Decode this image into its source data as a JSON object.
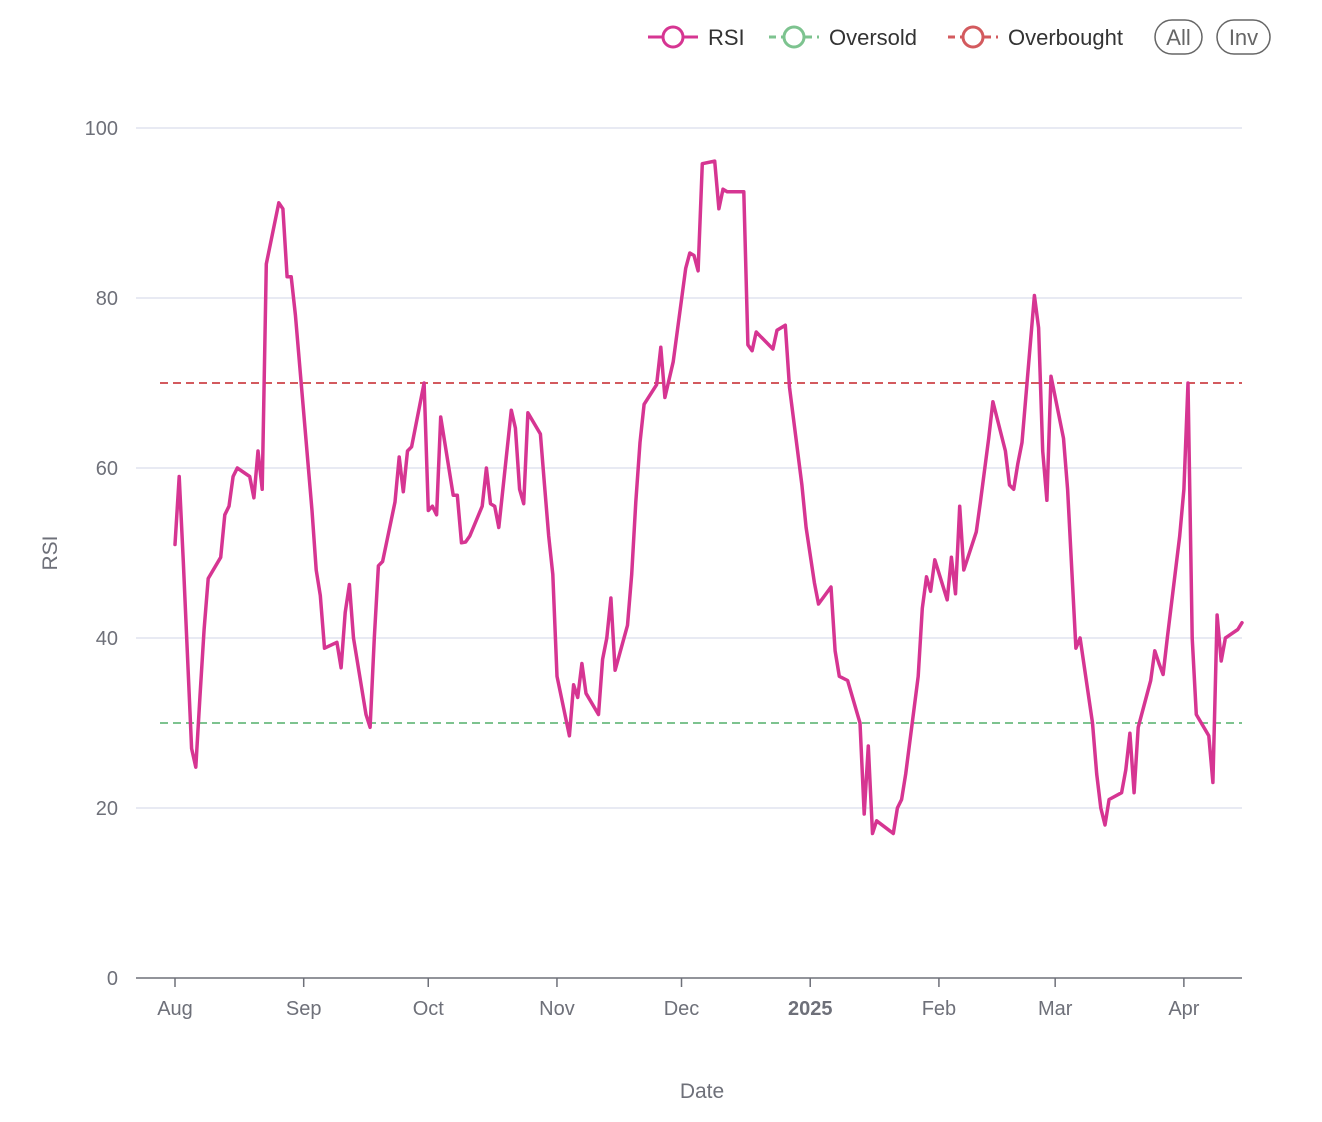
{
  "chart_data": {
    "type": "line",
    "xlabel": "Date",
    "ylabel": "RSI",
    "ylim": [
      0,
      100
    ],
    "y_ticks": [
      0,
      20,
      40,
      60,
      80,
      100
    ],
    "x_range": [
      "2024-08-01",
      "2025-04-15"
    ],
    "x_ticks": [
      {
        "date": "2024-08-01",
        "label": "Aug",
        "bold": false
      },
      {
        "date": "2024-09-01",
        "label": "Sep",
        "bold": false
      },
      {
        "date": "2024-10-01",
        "label": "Oct",
        "bold": false
      },
      {
        "date": "2024-11-01",
        "label": "Nov",
        "bold": false
      },
      {
        "date": "2024-12-01",
        "label": "Dec",
        "bold": false
      },
      {
        "date": "2025-01-01",
        "label": "2025",
        "bold": true
      },
      {
        "date": "2025-02-01",
        "label": "Feb",
        "bold": false
      },
      {
        "date": "2025-03-01",
        "label": "Mar",
        "bold": false
      },
      {
        "date": "2025-04-01",
        "label": "Apr",
        "bold": false
      }
    ],
    "grid": true,
    "legend_position": "top-right",
    "series": [
      {
        "name": "RSI",
        "color": "#d63592",
        "style": "solid",
        "points": [
          [
            "2024-08-01",
            51
          ],
          [
            "2024-08-02",
            59
          ],
          [
            "2024-08-03",
            49
          ],
          [
            "2024-08-05",
            27
          ],
          [
            "2024-08-06",
            24.8
          ],
          [
            "2024-08-07",
            33
          ],
          [
            "2024-08-08",
            41
          ],
          [
            "2024-08-09",
            47
          ],
          [
            "2024-08-12",
            49.5
          ],
          [
            "2024-08-13",
            54.5
          ],
          [
            "2024-08-14",
            55.5
          ],
          [
            "2024-08-15",
            59
          ],
          [
            "2024-08-16",
            60
          ],
          [
            "2024-08-19",
            59
          ],
          [
            "2024-08-20",
            56.5
          ],
          [
            "2024-08-21",
            62
          ],
          [
            "2024-08-22",
            57.5
          ],
          [
            "2024-08-23",
            84
          ],
          [
            "2024-08-26",
            91.2
          ],
          [
            "2024-08-27",
            90.5
          ],
          [
            "2024-08-28",
            82.5
          ],
          [
            "2024-08-29",
            82.5
          ],
          [
            "2024-08-30",
            78
          ],
          [
            "2024-09-03",
            55
          ],
          [
            "2024-09-04",
            48
          ],
          [
            "2024-09-05",
            45
          ],
          [
            "2024-09-06",
            38.8
          ],
          [
            "2024-09-09",
            39.5
          ],
          [
            "2024-09-10",
            36.5
          ],
          [
            "2024-09-11",
            43
          ],
          [
            "2024-09-12",
            46.3
          ],
          [
            "2024-09-13",
            40
          ],
          [
            "2024-09-16",
            31
          ],
          [
            "2024-09-17",
            29.5
          ],
          [
            "2024-09-18",
            40
          ],
          [
            "2024-09-19",
            48.5
          ],
          [
            "2024-09-20",
            49
          ],
          [
            "2024-09-23",
            56
          ],
          [
            "2024-09-24",
            61.3
          ],
          [
            "2024-09-25",
            57.2
          ],
          [
            "2024-09-26",
            62
          ],
          [
            "2024-09-27",
            62.5
          ],
          [
            "2024-09-30",
            70
          ],
          [
            "2024-10-01",
            55
          ],
          [
            "2024-10-02",
            55.5
          ],
          [
            "2024-10-03",
            54.5
          ],
          [
            "2024-10-04",
            66
          ],
          [
            "2024-10-07",
            56.8
          ],
          [
            "2024-10-08",
            56.8
          ],
          [
            "2024-10-09",
            51.2
          ],
          [
            "2024-10-10",
            51.3
          ],
          [
            "2024-10-11",
            52
          ],
          [
            "2024-10-14",
            55.5
          ],
          [
            "2024-10-15",
            60
          ],
          [
            "2024-10-16",
            55.8
          ],
          [
            "2024-10-17",
            55.5
          ],
          [
            "2024-10-18",
            53
          ],
          [
            "2024-10-21",
            66.8
          ],
          [
            "2024-10-22",
            64.7
          ],
          [
            "2024-10-23",
            57.5
          ],
          [
            "2024-10-24",
            55.8
          ],
          [
            "2024-10-25",
            66.5
          ],
          [
            "2024-10-28",
            64
          ],
          [
            "2024-10-29",
            58
          ],
          [
            "2024-10-30",
            52
          ],
          [
            "2024-10-31",
            47.5
          ],
          [
            "2024-11-01",
            35.5
          ],
          [
            "2024-11-04",
            28.5
          ],
          [
            "2024-11-05",
            34.5
          ],
          [
            "2024-11-06",
            33
          ],
          [
            "2024-11-07",
            37
          ],
          [
            "2024-11-08",
            33.5
          ],
          [
            "2024-11-11",
            31
          ],
          [
            "2024-11-12",
            37.5
          ],
          [
            "2024-11-13",
            40
          ],
          [
            "2024-11-14",
            44.7
          ],
          [
            "2024-11-15",
            36.2
          ],
          [
            "2024-11-18",
            41.5
          ],
          [
            "2024-11-19",
            47.5
          ],
          [
            "2024-11-20",
            56
          ],
          [
            "2024-11-21",
            63
          ],
          [
            "2024-11-22",
            67.5
          ],
          [
            "2024-11-25",
            69.8
          ],
          [
            "2024-11-26",
            74.2
          ],
          [
            "2024-11-27",
            68.3
          ],
          [
            "2024-11-29",
            72.5
          ],
          [
            "2024-12-02",
            83.5
          ],
          [
            "2024-12-03",
            85.3
          ],
          [
            "2024-12-04",
            85
          ],
          [
            "2024-12-05",
            83.2
          ],
          [
            "2024-12-06",
            95.8
          ],
          [
            "2024-12-09",
            96.1
          ],
          [
            "2024-12-10",
            90.5
          ],
          [
            "2024-12-11",
            92.8
          ],
          [
            "2024-12-12",
            92.5
          ],
          [
            "2024-12-13",
            92.5
          ],
          [
            "2024-12-16",
            92.5
          ],
          [
            "2024-12-17",
            74.5
          ],
          [
            "2024-12-18",
            73.8
          ],
          [
            "2024-12-19",
            76
          ],
          [
            "2024-12-20",
            75.5
          ],
          [
            "2024-12-23",
            74
          ],
          [
            "2024-12-24",
            76.2
          ],
          [
            "2024-12-26",
            76.8
          ],
          [
            "2024-12-27",
            69.5
          ],
          [
            "2024-12-30",
            58
          ],
          [
            "2024-12-31",
            53
          ],
          [
            "2025-01-02",
            46.5
          ],
          [
            "2025-01-03",
            44
          ],
          [
            "2025-01-06",
            46
          ],
          [
            "2025-01-07",
            38.5
          ],
          [
            "2025-01-08",
            35.5
          ],
          [
            "2025-01-10",
            35
          ],
          [
            "2025-01-13",
            30
          ],
          [
            "2025-01-14",
            19.3
          ],
          [
            "2025-01-15",
            27.3
          ],
          [
            "2025-01-16",
            17
          ],
          [
            "2025-01-17",
            18.5
          ],
          [
            "2025-01-21",
            17
          ],
          [
            "2025-01-22",
            20
          ],
          [
            "2025-01-23",
            21
          ],
          [
            "2025-01-24",
            24
          ],
          [
            "2025-01-27",
            35.5
          ],
          [
            "2025-01-28",
            43.5
          ],
          [
            "2025-01-29",
            47.2
          ],
          [
            "2025-01-30",
            45.5
          ],
          [
            "2025-01-31",
            49.2
          ],
          [
            "2025-02-03",
            44.5
          ],
          [
            "2025-02-04",
            49.5
          ],
          [
            "2025-02-05",
            45.2
          ],
          [
            "2025-02-06",
            55.5
          ],
          [
            "2025-02-07",
            48
          ],
          [
            "2025-02-10",
            52.5
          ],
          [
            "2025-02-11",
            56
          ],
          [
            "2025-02-13",
            63.5
          ],
          [
            "2025-02-14",
            67.8
          ],
          [
            "2025-02-17",
            62
          ],
          [
            "2025-02-18",
            58
          ],
          [
            "2025-02-19",
            57.5
          ],
          [
            "2025-02-20",
            60.5
          ],
          [
            "2025-02-21",
            63
          ],
          [
            "2025-02-24",
            80.3
          ],
          [
            "2025-02-25",
            76.5
          ],
          [
            "2025-02-26",
            62
          ],
          [
            "2025-02-27",
            56.2
          ],
          [
            "2025-02-28",
            70.8
          ],
          [
            "2025-03-03",
            63.5
          ],
          [
            "2025-03-04",
            57.5
          ],
          [
            "2025-03-05",
            48
          ],
          [
            "2025-03-06",
            38.8
          ],
          [
            "2025-03-07",
            40
          ],
          [
            "2025-03-10",
            30
          ],
          [
            "2025-03-11",
            24
          ],
          [
            "2025-03-12",
            20
          ],
          [
            "2025-03-13",
            18
          ],
          [
            "2025-03-14",
            21
          ],
          [
            "2025-03-17",
            21.8
          ],
          [
            "2025-03-18",
            24.5
          ],
          [
            "2025-03-19",
            28.8
          ],
          [
            "2025-03-20",
            21.8
          ],
          [
            "2025-03-21",
            29.5
          ],
          [
            "2025-03-24",
            35
          ],
          [
            "2025-03-25",
            38.5
          ],
          [
            "2025-03-26",
            37
          ],
          [
            "2025-03-27",
            35.7
          ],
          [
            "2025-03-28",
            40
          ],
          [
            "2025-03-31",
            52
          ],
          [
            "2025-04-01",
            57.5
          ],
          [
            "2025-04-02",
            70
          ],
          [
            "2025-04-03",
            40
          ],
          [
            "2025-04-04",
            31
          ],
          [
            "2025-04-07",
            28.5
          ],
          [
            "2025-04-08",
            23
          ],
          [
            "2025-04-09",
            42.7
          ],
          [
            "2025-04-10",
            37.3
          ],
          [
            "2025-04-11",
            40
          ],
          [
            "2025-04-14",
            41
          ],
          [
            "2025-04-15",
            41.8
          ]
        ]
      },
      {
        "name": "Oversold",
        "color": "#7dc38f",
        "style": "dashed",
        "value": 30
      },
      {
        "name": "Overbought",
        "color": "#d35a5e",
        "style": "dashed",
        "value": 70
      }
    ],
    "legend_buttons": [
      "All",
      "Inv"
    ]
  }
}
